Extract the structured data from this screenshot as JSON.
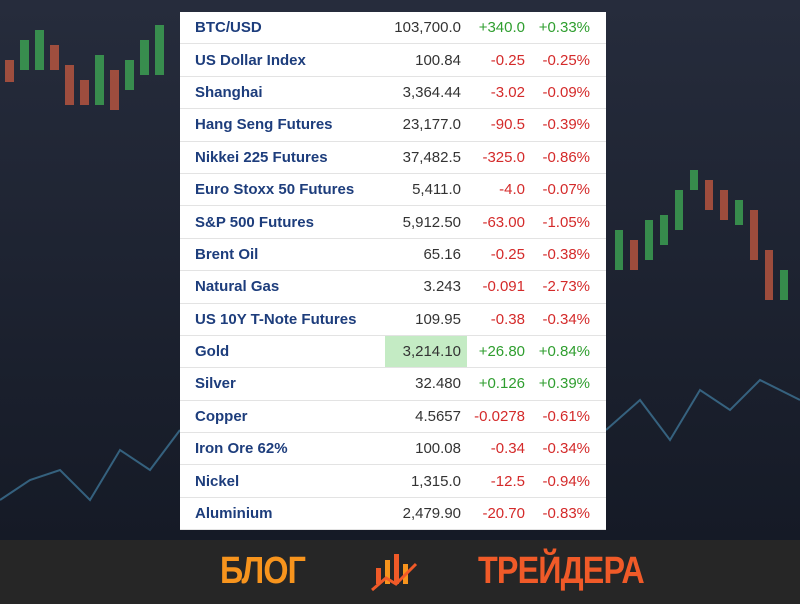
{
  "table": {
    "rows": [
      [
        "BTC/USD",
        "103,700.0",
        "+340.0",
        "+0.33%"
      ],
      [
        "US Dollar Index",
        "100.84",
        "-0.25",
        "-0.25%"
      ],
      [
        "Shanghai",
        "3,364.44",
        "-3.02",
        "-0.09%"
      ],
      [
        "Hang Seng Futures",
        "23,177.0",
        "-90.5",
        "-0.39%"
      ],
      [
        "Nikkei 225 Futures",
        "37,482.5",
        "-325.0",
        "-0.86%"
      ],
      [
        "Euro Stoxx 50 Futures",
        "5,411.0",
        "-4.0",
        "-0.07%"
      ],
      [
        "S&P 500 Futures",
        "5,912.50",
        "-63.00",
        "-1.05%"
      ],
      [
        "Brent Oil",
        "65.16",
        "-0.25",
        "-0.38%"
      ],
      [
        "Natural Gas",
        "3.243",
        "-0.091",
        "-2.73%"
      ],
      [
        "US 10Y T-Note Futures",
        "109.95",
        "-0.38",
        "-0.34%"
      ],
      [
        "Gold",
        "3,214.10",
        "+26.80",
        "+0.84%"
      ],
      [
        "Silver",
        "32.480",
        "+0.126",
        "+0.39%"
      ],
      [
        "Copper",
        "4.5657",
        "-0.0278",
        "-0.61%"
      ],
      [
        "Iron Ore 62%",
        "100.08",
        "-0.34",
        "-0.34%"
      ],
      [
        "Nickel",
        "1,315.0",
        "-12.5",
        "-0.94%"
      ],
      [
        "Aluminium",
        "2,479.90",
        "-20.70",
        "-0.83%"
      ]
    ]
  },
  "footer": {
    "left": "БЛОГ",
    "right": "ТРЕЙДЕРА"
  }
}
